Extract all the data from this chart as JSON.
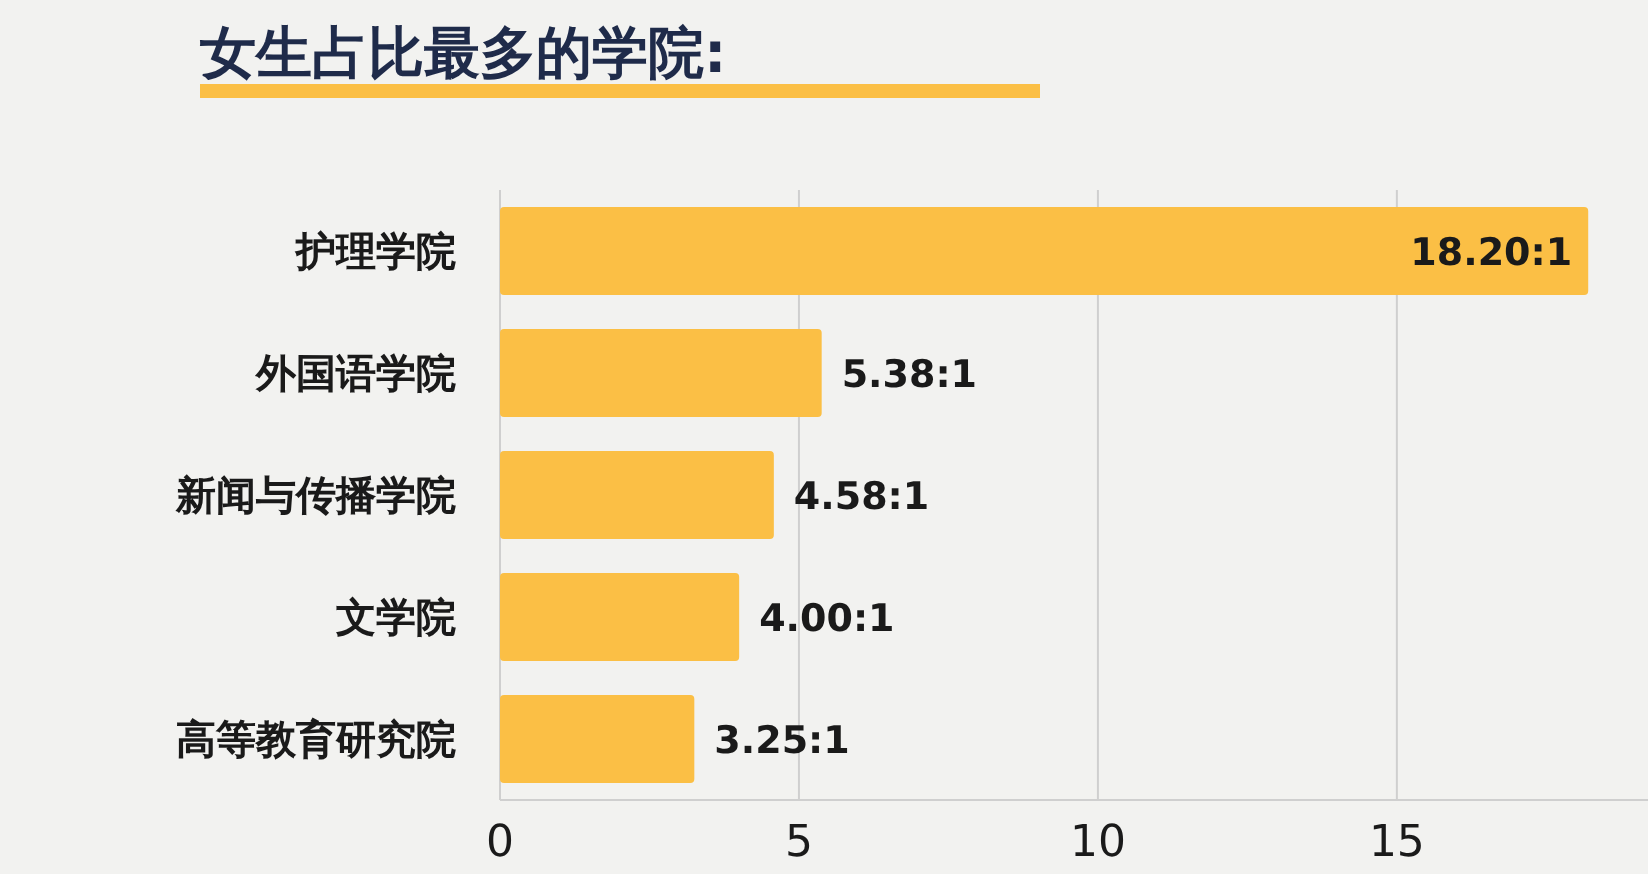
{
  "chart_data": {
    "type": "bar",
    "orientation": "horizontal",
    "title": "女生占比最多的学院:",
    "categories": [
      "护理学院",
      "外国语学院",
      "新闻与传播学院",
      "文学院",
      "高等教育研究院"
    ],
    "values": [
      18.2,
      5.38,
      4.58,
      4.0,
      3.25
    ],
    "value_labels": [
      "18.20:1",
      "5.38:1",
      "4.58:1",
      "4.00:1",
      "3.25:1"
    ],
    "color": "#fbbf45",
    "xlim": [
      0,
      19.2
    ],
    "xticks": [
      0,
      5,
      10,
      15
    ],
    "grid": "x"
  }
}
